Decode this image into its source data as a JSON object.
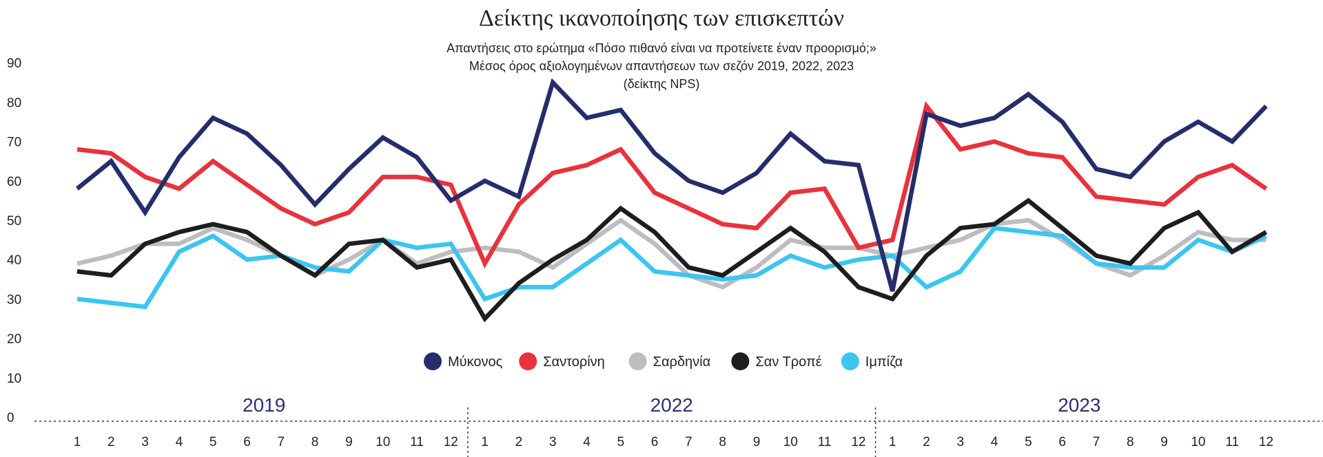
{
  "title": "Δείκτης ικανοποίησης των επισκεπτών",
  "subtitle_lines": [
    "Απαντήσεις στο ερώτημα «Πόσο πιθανό είναι να προτείνετε έναν προορισμό;»",
    "Μέσος όρος αξιολογημένων απαντήσεων των σεζόν 2019, 2022, 2023",
    "(δείκτης NPS)"
  ],
  "chart_data": {
    "type": "line",
    "title": "Δείκτης ικανοποίησης των επισκεπτών",
    "ylim": [
      0,
      90
    ],
    "yticks": [
      0,
      10,
      20,
      30,
      40,
      50,
      60,
      70,
      80,
      90
    ],
    "years": [
      "2019",
      "2022",
      "2023"
    ],
    "months": [
      1,
      2,
      3,
      4,
      5,
      6,
      7,
      8,
      9,
      10,
      11,
      12
    ],
    "grid": false,
    "legend_position": "center",
    "series": [
      {
        "name": "Μύκονος",
        "color": "#262d6b",
        "values": [
          58,
          65,
          52,
          66,
          76,
          72,
          64,
          54,
          63,
          71,
          66,
          55,
          60,
          56,
          85,
          76,
          78,
          67,
          60,
          57,
          62,
          72,
          65,
          64,
          32,
          77,
          74,
          76,
          82,
          75,
          63,
          61,
          70,
          75,
          70,
          79
        ]
      },
      {
        "name": "Σαντορίνη",
        "color": "#e8323c",
        "values": [
          68,
          67,
          61,
          58,
          65,
          59,
          53,
          49,
          52,
          61,
          61,
          59,
          39,
          54,
          62,
          64,
          68,
          57,
          53,
          49,
          48,
          57,
          58,
          43,
          45,
          79,
          68,
          70,
          67,
          66,
          56,
          55,
          54,
          61,
          64,
          58
        ]
      },
      {
        "name": "Σαρδηνία",
        "color": "#bdbdc1",
        "values": [
          39,
          41,
          44,
          44,
          48,
          45,
          41,
          36,
          40,
          45,
          39,
          42,
          43,
          42,
          38,
          44,
          50,
          44,
          36,
          33,
          38,
          45,
          43,
          43,
          41,
          43,
          45,
          49,
          50,
          45,
          39,
          36,
          41,
          47,
          45,
          45
        ]
      },
      {
        "name": "Σαν Τροπέ",
        "color": "#1e1e1e",
        "values": [
          37,
          36,
          44,
          47,
          49,
          47,
          41,
          36,
          44,
          45,
          38,
          40,
          25,
          34,
          40,
          45,
          53,
          47,
          38,
          36,
          42,
          48,
          42,
          33,
          30,
          41,
          48,
          49,
          55,
          48,
          41,
          39,
          48,
          52,
          42,
          47
        ]
      },
      {
        "name": "Ιμπίζα",
        "color": "#3cc5f0",
        "values": [
          30,
          29,
          28,
          42,
          46,
          40,
          41,
          38,
          37,
          45,
          43,
          44,
          30,
          33,
          33,
          39,
          45,
          37,
          36,
          35,
          36,
          41,
          38,
          40,
          41,
          33,
          37,
          48,
          47,
          46,
          39,
          38,
          38,
          45,
          42,
          46
        ]
      }
    ]
  }
}
